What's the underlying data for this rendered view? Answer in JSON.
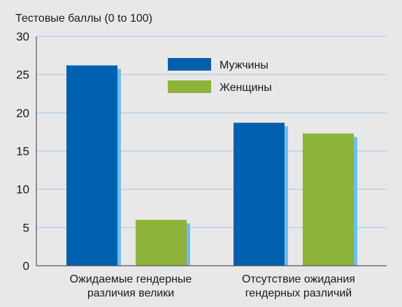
{
  "chart_data": {
    "type": "bar",
    "title": "",
    "ylabel": "Тестовые баллы (0 to 100)",
    "xlabel": "",
    "ylim": [
      0,
      30
    ],
    "yticks": [
      0,
      5,
      10,
      15,
      20,
      25,
      30
    ],
    "grid": true,
    "legend_position": "top-center",
    "categories": [
      [
        "Ожидаемые гендерные",
        "различия велики"
      ],
      [
        "Отсутствие ожидания",
        "гендерных различий"
      ]
    ],
    "series": [
      {
        "name": "Мужчины",
        "values": [
          26.2,
          18.7
        ],
        "color": "#0060b0",
        "shadow_color": "#6cc0e8"
      },
      {
        "name": "Женщины",
        "values": [
          6.0,
          17.3
        ],
        "color": "#8db33a",
        "shadow_color": "#6cc0e8"
      }
    ]
  }
}
